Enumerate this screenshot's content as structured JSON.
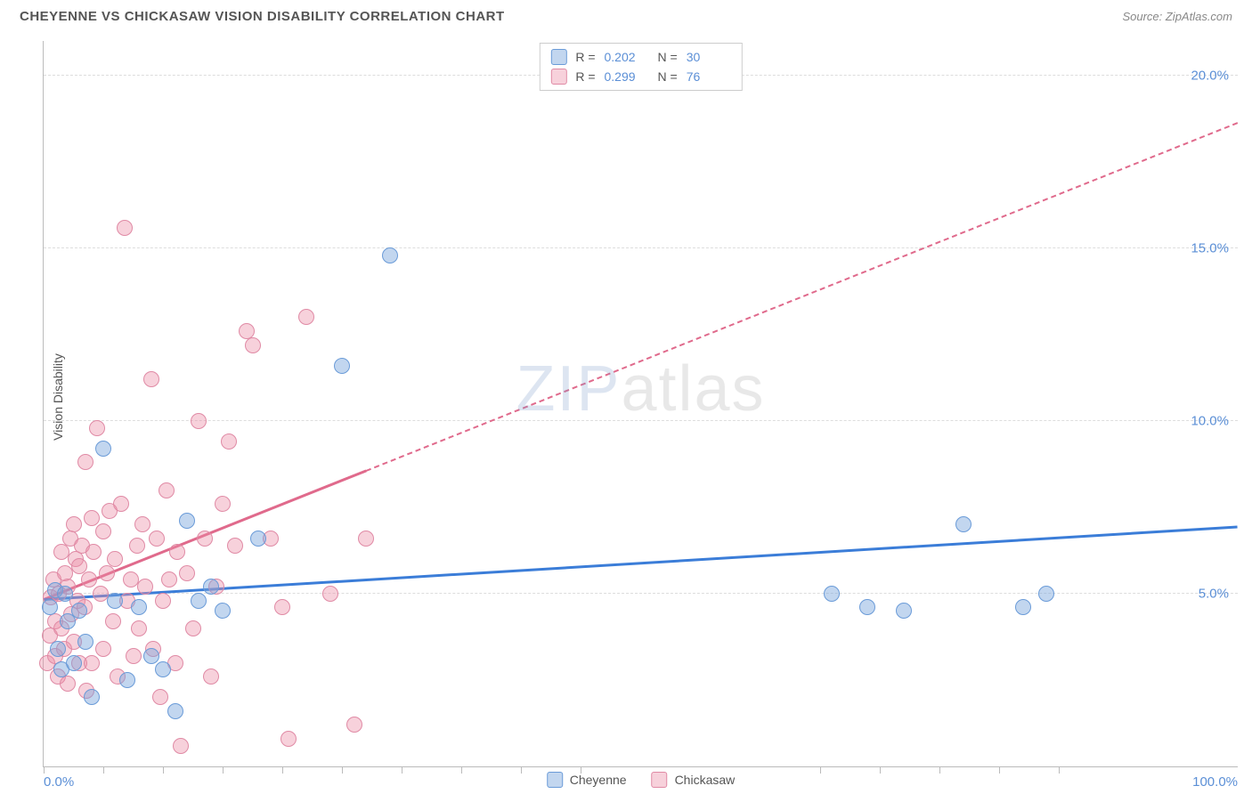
{
  "header": {
    "title": "CHEYENNE VS CHICKASAW VISION DISABILITY CORRELATION CHART",
    "source_prefix": "Source: ",
    "source_name": "ZipAtlas.com"
  },
  "axes": {
    "y_title": "Vision Disability",
    "x_min_label": "0.0%",
    "x_max_label": "100.0%",
    "x_min": 0,
    "x_max": 100,
    "y_min": 0,
    "y_max": 21,
    "y_ticks": [
      {
        "v": 5,
        "label": "5.0%"
      },
      {
        "v": 10,
        "label": "10.0%"
      },
      {
        "v": 15,
        "label": "15.0%"
      },
      {
        "v": 20,
        "label": "20.0%"
      }
    ],
    "x_tick_positions": [
      0,
      5,
      10,
      15,
      20,
      25,
      30,
      35,
      40,
      45,
      65,
      70,
      75,
      80,
      85
    ]
  },
  "colors": {
    "cheyenne_fill": "rgba(120,165,220,0.45)",
    "cheyenne_stroke": "#6a9bd8",
    "chickasaw_fill": "rgba(235,140,165,0.40)",
    "chickasaw_stroke": "#e08aa5",
    "trend_blue": "#3b7dd8",
    "trend_pink": "#e06a8c",
    "grid": "#dddddd",
    "axis": "#bbbbbb",
    "tick_text": "#5b8fd6"
  },
  "marker_radius": 9,
  "series": {
    "cheyenne": {
      "label": "Cheyenne",
      "R": "0.202",
      "N": "30",
      "points": [
        [
          0.5,
          4.6
        ],
        [
          1,
          5.1
        ],
        [
          1.2,
          3.4
        ],
        [
          1.5,
          2.8
        ],
        [
          1.8,
          5.0
        ],
        [
          2,
          4.2
        ],
        [
          2.5,
          3.0
        ],
        [
          3,
          4.5
        ],
        [
          3.5,
          3.6
        ],
        [
          4,
          2.0
        ],
        [
          5,
          9.2
        ],
        [
          6,
          4.8
        ],
        [
          7,
          2.5
        ],
        [
          8,
          4.6
        ],
        [
          9,
          3.2
        ],
        [
          10,
          2.8
        ],
        [
          11,
          1.6
        ],
        [
          12,
          7.1
        ],
        [
          13,
          4.8
        ],
        [
          14,
          5.2
        ],
        [
          15,
          4.5
        ],
        [
          18,
          6.6
        ],
        [
          25,
          11.6
        ],
        [
          29,
          14.8
        ],
        [
          66,
          5.0
        ],
        [
          69,
          4.6
        ],
        [
          72,
          4.5
        ],
        [
          77,
          7.0
        ],
        [
          82,
          4.6
        ],
        [
          84,
          5.0
        ]
      ],
      "trend": {
        "x1": 0,
        "y1": 4.8,
        "x2": 100,
        "y2": 6.9,
        "solid_until_x": 100
      }
    },
    "chickasaw": {
      "label": "Chickasaw",
      "R": "0.299",
      "N": "76",
      "points": [
        [
          0.3,
          3.0
        ],
        [
          0.5,
          3.8
        ],
        [
          0.6,
          4.9
        ],
        [
          0.8,
          5.4
        ],
        [
          1,
          3.2
        ],
        [
          1,
          4.2
        ],
        [
          1.2,
          2.6
        ],
        [
          1.3,
          5.0
        ],
        [
          1.5,
          4.0
        ],
        [
          1.5,
          6.2
        ],
        [
          1.7,
          3.4
        ],
        [
          1.8,
          5.6
        ],
        [
          2,
          2.4
        ],
        [
          2,
          5.2
        ],
        [
          2.2,
          6.6
        ],
        [
          2.3,
          4.4
        ],
        [
          2.5,
          3.6
        ],
        [
          2.5,
          7.0
        ],
        [
          2.7,
          6.0
        ],
        [
          2.8,
          4.8
        ],
        [
          3,
          3.0
        ],
        [
          3,
          5.8
        ],
        [
          3.2,
          6.4
        ],
        [
          3.4,
          4.6
        ],
        [
          3.5,
          8.8
        ],
        [
          3.6,
          2.2
        ],
        [
          3.8,
          5.4
        ],
        [
          4,
          7.2
        ],
        [
          4,
          3.0
        ],
        [
          4.2,
          6.2
        ],
        [
          4.5,
          9.8
        ],
        [
          4.8,
          5.0
        ],
        [
          5,
          6.8
        ],
        [
          5,
          3.4
        ],
        [
          5.3,
          5.6
        ],
        [
          5.5,
          7.4
        ],
        [
          5.8,
          4.2
        ],
        [
          6,
          6.0
        ],
        [
          6.2,
          2.6
        ],
        [
          6.5,
          7.6
        ],
        [
          6.8,
          15.6
        ],
        [
          7,
          4.8
        ],
        [
          7.3,
          5.4
        ],
        [
          7.5,
          3.2
        ],
        [
          7.8,
          6.4
        ],
        [
          8,
          4.0
        ],
        [
          8.3,
          7.0
        ],
        [
          8.5,
          5.2
        ],
        [
          9,
          11.2
        ],
        [
          9.2,
          3.4
        ],
        [
          9.5,
          6.6
        ],
        [
          9.8,
          2.0
        ],
        [
          10,
          4.8
        ],
        [
          10.3,
          8.0
        ],
        [
          10.5,
          5.4
        ],
        [
          11,
          3.0
        ],
        [
          11.2,
          6.2
        ],
        [
          11.5,
          0.6
        ],
        [
          12,
          5.6
        ],
        [
          12.5,
          4.0
        ],
        [
          13,
          10.0
        ],
        [
          13.5,
          6.6
        ],
        [
          14,
          2.6
        ],
        [
          14.5,
          5.2
        ],
        [
          15,
          7.6
        ],
        [
          15.5,
          9.4
        ],
        [
          16,
          6.4
        ],
        [
          17,
          12.6
        ],
        [
          17.5,
          12.2
        ],
        [
          19,
          6.6
        ],
        [
          20,
          4.6
        ],
        [
          20.5,
          0.8
        ],
        [
          22,
          13.0
        ],
        [
          24,
          5.0
        ],
        [
          26,
          1.2
        ],
        [
          27,
          6.6
        ]
      ],
      "trend": {
        "x1": 0,
        "y1": 4.8,
        "x2": 100,
        "y2": 18.6,
        "solid_until_x": 27
      }
    }
  },
  "watermark": {
    "part1": "ZIP",
    "part2": "atlas"
  },
  "legend_stats_labels": {
    "R": "R =",
    "N": "N ="
  }
}
